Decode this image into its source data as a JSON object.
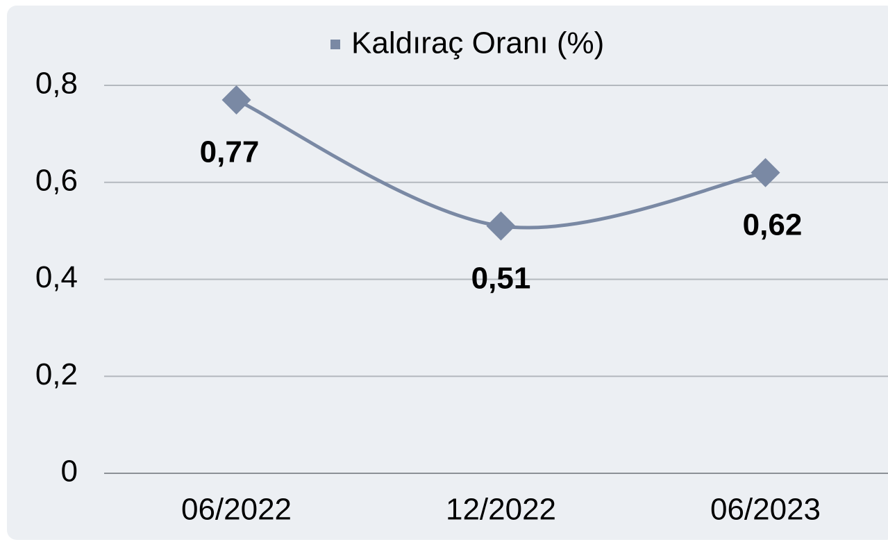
{
  "chart_data": {
    "type": "line",
    "legend": "Kaldıraç Oranı (%)",
    "categories": [
      "06/2022",
      "12/2022",
      "06/2023"
    ],
    "series": [
      {
        "name": "Kaldıraç Oranı (%)",
        "color": "#7a89a4",
        "values": [
          0.77,
          0.51,
          0.62
        ],
        "value_labels": [
          "0,77",
          "0,51",
          "0,62"
        ]
      }
    ],
    "ylim": [
      0,
      0.8
    ],
    "yticks": [
      0,
      {
        "value": 0.2,
        "label": "0,2"
      },
      {
        "value": 0.4,
        "label": "0,4"
      },
      {
        "value": 0.6,
        "label": "0,6"
      },
      {
        "value": 0.8,
        "label": "0,8"
      }
    ],
    "grid": true,
    "smooth": true,
    "legend_position": "top"
  }
}
